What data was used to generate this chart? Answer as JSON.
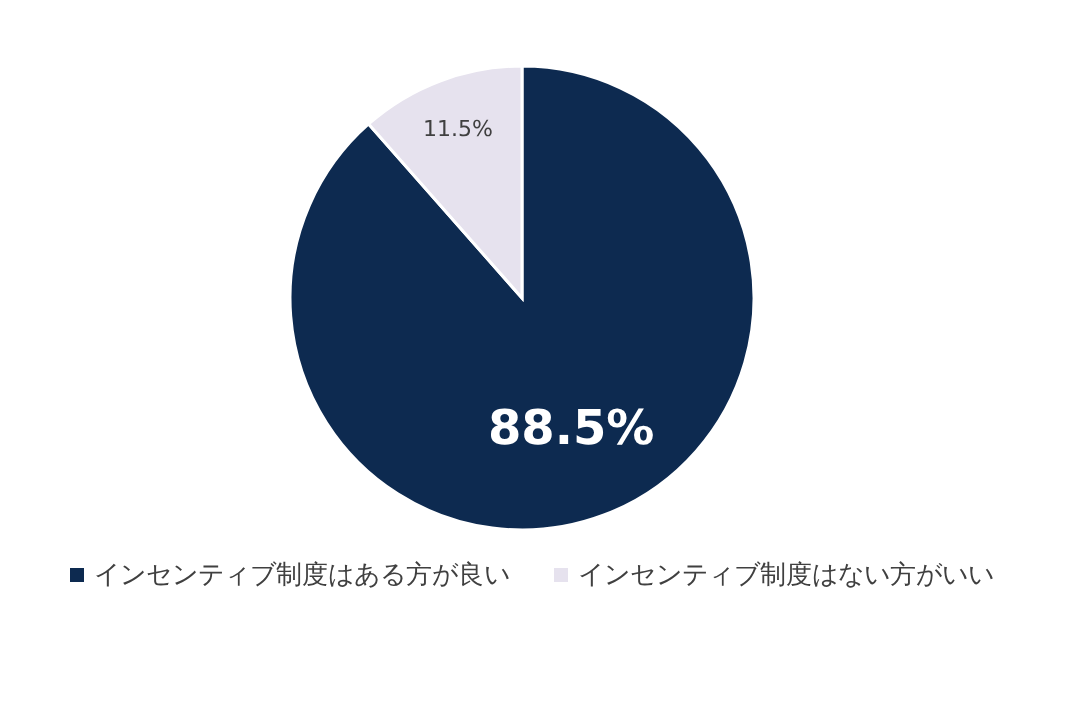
{
  "chart_data": {
    "type": "pie",
    "categories": [
      "インセンティブ制度はある方が良い",
      "インセンティブ制度はない方がいい"
    ],
    "values": [
      88.5,
      11.5
    ],
    "colors": [
      "#0d2a50",
      "#e6e2ee"
    ],
    "value_labels": [
      "88.5%",
      "11.5%"
    ],
    "legend": "bottom"
  }
}
